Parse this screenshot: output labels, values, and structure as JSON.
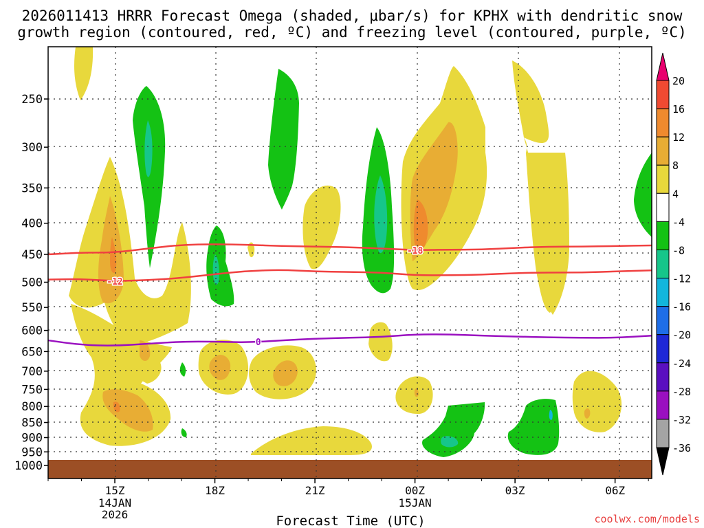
{
  "chart_data": {
    "type": "heatmap",
    "title_line1": "2026011413 HRRR Forecast Omega (shaded, μbar/s) for KPHX with dendritic snow",
    "title_line2": "growth region (contoured, red, ºC) and freezing level (contoured, purple, ºC)",
    "xlabel": "Forecast Time (UTC)",
    "ylabel": "",
    "credit": "coolwx.com/models",
    "xlim": [
      13.0,
      31.1
    ],
    "ylim": [
      1000,
      200
    ],
    "x_ticks": [
      {
        "x": 15,
        "label": "15Z",
        "sub1": "14JAN",
        "sub2": "2026"
      },
      {
        "x": 18,
        "label": "18Z",
        "sub1": "",
        "sub2": ""
      },
      {
        "x": 21,
        "label": "21Z",
        "sub1": "",
        "sub2": ""
      },
      {
        "x": 24,
        "label": "00Z",
        "sub1": "15JAN",
        "sub2": ""
      },
      {
        "x": 27,
        "label": "03Z",
        "sub1": "",
        "sub2": ""
      },
      {
        "x": 30,
        "label": "06Z",
        "sub1": "",
        "sub2": ""
      }
    ],
    "y_ticks": [
      250,
      300,
      350,
      400,
      450,
      500,
      550,
      600,
      650,
      700,
      750,
      800,
      850,
      900,
      950,
      1000
    ],
    "colorbar": {
      "labels": [
        "20",
        "16",
        "12",
        "8",
        "4",
        "-4",
        "-8",
        "-12",
        "-16",
        "-20",
        "-24",
        "-28",
        "-32",
        "-36"
      ],
      "colors": [
        "#e8006e",
        "#f04a32",
        "#ef8a2e",
        "#e8ad34",
        "#e8d83c",
        "#ffffff",
        "#14c214",
        "#16c68a",
        "#12b6dc",
        "#1e6ee8",
        "#1e28d6",
        "#5a0fc0",
        "#9a10c0",
        "#a4a4a4",
        "#000000"
      ]
    },
    "contours": [
      {
        "name": "-18",
        "color": "#f04040",
        "label": "-18",
        "points": [
          [
            13.0,
            450
          ],
          [
            14,
            447
          ],
          [
            15,
            447
          ],
          [
            16,
            440
          ],
          [
            17,
            434
          ],
          [
            18,
            433
          ],
          [
            19,
            434
          ],
          [
            20,
            436
          ],
          [
            21,
            437
          ],
          [
            22,
            438
          ],
          [
            23,
            440
          ],
          [
            24,
            443
          ],
          [
            25,
            442
          ],
          [
            26,
            442
          ],
          [
            27,
            439
          ],
          [
            28,
            437
          ],
          [
            29,
            437
          ],
          [
            30,
            436
          ],
          [
            31.1,
            435
          ]
        ]
      },
      {
        "name": "-12",
        "color": "#f04040",
        "label": "-12",
        "points": [
          [
            13.0,
            495
          ],
          [
            14,
            494
          ],
          [
            15,
            498
          ],
          [
            16,
            496
          ],
          [
            17,
            492
          ],
          [
            18,
            485
          ],
          [
            19,
            479
          ],
          [
            20,
            477
          ],
          [
            21,
            480
          ],
          [
            22,
            481
          ],
          [
            23,
            482
          ],
          [
            24,
            487
          ],
          [
            25,
            487
          ],
          [
            26,
            486
          ],
          [
            27,
            483
          ],
          [
            28,
            482
          ],
          [
            29,
            482
          ],
          [
            30,
            480
          ],
          [
            31.1,
            478
          ]
        ]
      },
      {
        "name": "0",
        "color": "#9a10c0",
        "label": "0",
        "points": [
          [
            13.0,
            623
          ],
          [
            14,
            634
          ],
          [
            15,
            636
          ],
          [
            16,
            631
          ],
          [
            17,
            626
          ],
          [
            18,
            626
          ],
          [
            19,
            628
          ],
          [
            20,
            623
          ],
          [
            21,
            619
          ],
          [
            22,
            617
          ],
          [
            23,
            615
          ],
          [
            24,
            609
          ],
          [
            25,
            609
          ],
          [
            26,
            612
          ],
          [
            27,
            614
          ],
          [
            28,
            616
          ],
          [
            29,
            617
          ],
          [
            30,
            617
          ],
          [
            31.1,
            612
          ]
        ]
      }
    ],
    "shaded_regions": [
      {
        "value": "4 to 8",
        "color": "#e8d83c"
      },
      {
        "value": "8 to 12",
        "color": "#e8ad34"
      },
      {
        "value": "12 to 16",
        "color": "#ef8a2e"
      },
      {
        "value": "-4 to -8",
        "color": "#14c214"
      },
      {
        "value": "-8 to -12",
        "color": "#16c68a"
      },
      {
        "value": "-12 to -16",
        "color": "#12b6dc"
      }
    ],
    "ground_below_hpa": 965
  }
}
